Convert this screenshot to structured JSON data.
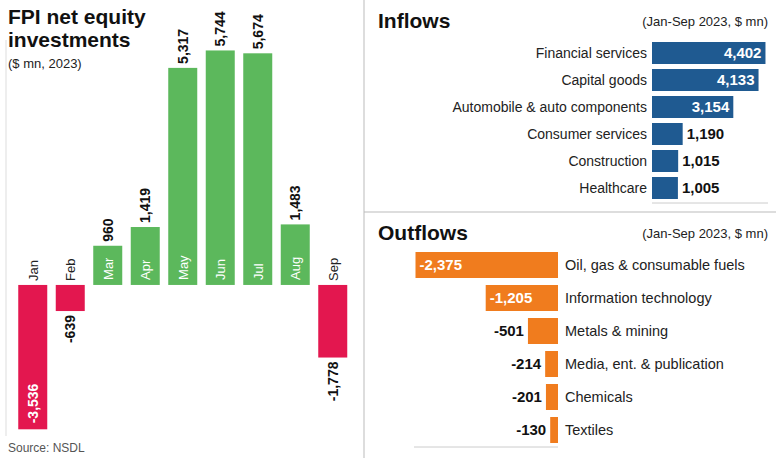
{
  "chart_data": [
    {
      "type": "bar",
      "title": "FPI net equity investments",
      "subtitle": "($ mn, 2023)",
      "source": "Source: NSDL",
      "categories": [
        "Jan",
        "Feb",
        "Mar",
        "Apr",
        "May",
        "Jun",
        "Jul",
        "Aug",
        "Sep"
      ],
      "values": [
        -3536,
        -639,
        960,
        1419,
        5317,
        5744,
        5674,
        1483,
        -1778
      ],
      "value_labels": [
        "-3,536",
        "-639",
        "960",
        "1,419",
        "5,317",
        "5,744",
        "5,674",
        "1,483",
        "-1,778"
      ],
      "colors": [
        "#e3174f",
        "#e3174f",
        "#5cb85c",
        "#5cb85c",
        "#5cb85c",
        "#5cb85c",
        "#5cb85c",
        "#5cb85c",
        "#e3174f"
      ],
      "ylim": [
        -3700,
        6000
      ],
      "data_labels": true,
      "tick_labels": false,
      "grid": false
    },
    {
      "type": "bar",
      "title": "Inflows",
      "subtitle": "(Jan-Sep 2023, $ mn)",
      "orientation": "horizontal",
      "categories": [
        "Financial services",
        "Capital goods",
        "Automobile & auto components",
        "Consumer services",
        "Construction",
        "Healthcare"
      ],
      "values": [
        4402,
        4133,
        3154,
        1190,
        1015,
        1005
      ],
      "value_labels": [
        "4,402",
        "4,133",
        "3,154",
        "1,190",
        "1,015",
        "1,005"
      ],
      "color": "#1f5a91",
      "xlim": [
        0,
        4500
      ],
      "data_labels": true,
      "tick_labels": false,
      "grid": false
    },
    {
      "type": "bar",
      "title": "Outflows",
      "subtitle": "(Jan-Sep 2023, $ mn)",
      "orientation": "horizontal",
      "categories": [
        "Oil, gas & consumable fuels",
        "Information technology",
        "Metals & mining",
        "Media, ent. & publication",
        "Chemicals",
        "Textiles"
      ],
      "values": [
        -2375,
        -1205,
        -501,
        -214,
        -201,
        -130
      ],
      "value_labels": [
        "-2,375",
        "-1,205",
        "-501",
        "-214",
        "-201",
        "-130"
      ],
      "color": "#f07c1e",
      "xlim": [
        -2400,
        0
      ],
      "data_labels": true,
      "tick_labels": false,
      "grid": false
    }
  ]
}
